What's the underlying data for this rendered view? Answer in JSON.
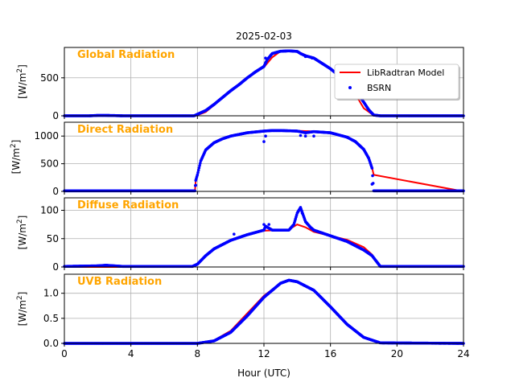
{
  "figure": {
    "title": "2025-02-03",
    "xlabel": "Hour (UTC)",
    "ylabel_unit": "[W/m",
    "ylabel_sup": "2",
    "ylabel_close": "]",
    "xlim": [
      0,
      24
    ],
    "xticks": [
      0,
      4,
      8,
      12,
      16,
      20,
      24
    ],
    "grid": true,
    "label_color": "#ffa500",
    "model_color": "#ff0000",
    "obs_color": "#0000ff"
  },
  "legend": {
    "placement": "upper right of first panel",
    "entries": [
      {
        "label": "LibRadtran Model",
        "kind": "line",
        "color": "#ff0000"
      },
      {
        "label": "BSRN",
        "kind": "dot",
        "color": "#0000ff"
      }
    ]
  },
  "chart_data": [
    {
      "type": "line",
      "panel_label": "Global Radiation",
      "ylim": [
        0,
        900
      ],
      "yticks": [
        0,
        500
      ],
      "series": [
        {
          "name": "LibRadtran Model",
          "x": [
            0,
            7.9,
            8.5,
            9,
            10,
            11,
            12,
            12.5,
            13,
            13.5,
            14,
            14.5,
            15,
            16,
            17,
            18,
            18.5,
            18.6,
            24
          ],
          "y": [
            0,
            0,
            50,
            140,
            330,
            510,
            640,
            770,
            850,
            855,
            848,
            800,
            760,
            620,
            470,
            100,
            20,
            0,
            0
          ]
        },
        {
          "name": "BSRN",
          "x": [
            0,
            1.5,
            2,
            2.5,
            3,
            3.5,
            7.8,
            8,
            8.5,
            9,
            9.5,
            10,
            10.5,
            11,
            11.5,
            12,
            12.2,
            12.5,
            13,
            13.5,
            14,
            14.2,
            14.5,
            15,
            15.5,
            16,
            16.5,
            17,
            17.5,
            18,
            18.3,
            18.6,
            19,
            24
          ],
          "y": [
            0,
            0,
            5,
            5,
            3,
            0,
            0,
            20,
            70,
            150,
            240,
            330,
            410,
            500,
            580,
            650,
            740,
            820,
            850,
            855,
            848,
            820,
            790,
            760,
            690,
            620,
            530,
            460,
            340,
            180,
            80,
            10,
            0,
            0
          ]
        }
      ],
      "outliers_x": [
        12.1,
        12.1,
        14.5,
        14.9
      ],
      "outliers_y": [
        700,
        760,
        780,
        760
      ]
    },
    {
      "type": "line",
      "panel_label": "Direct Radiation",
      "ylim": [
        0,
        1250
      ],
      "yticks": [
        0,
        500,
        1000
      ],
      "series": [
        {
          "name": "LibRadtran Model",
          "x": [
            0,
            7.85,
            7.9,
            8.2,
            8.5,
            9,
            10,
            11,
            12,
            13,
            14,
            15,
            16,
            17,
            17.5,
            18,
            18.3,
            18.5,
            18.6,
            24
          ],
          "y": [
            0,
            0,
            200,
            550,
            750,
            880,
            1000,
            1060,
            1090,
            1100,
            1095,
            1085,
            1060,
            980,
            900,
            760,
            600,
            430,
            300,
            0
          ]
        },
        {
          "name": "BSRN",
          "x": [
            0,
            7.85,
            7.9,
            8,
            8.2,
            8.5,
            9,
            9.5,
            10,
            11,
            12,
            12.5,
            13,
            13.5,
            14,
            14.5,
            15,
            16,
            17,
            17.5,
            18,
            18.3,
            18.5,
            18.6,
            24
          ],
          "y": [
            10,
            10,
            200,
            300,
            550,
            750,
            880,
            950,
            1000,
            1060,
            1090,
            1100,
            1100,
            1095,
            1090,
            1060,
            1080,
            1060,
            980,
            900,
            760,
            600,
            420,
            10,
            10
          ]
        }
      ],
      "outliers_x": [
        7.9,
        12,
        12.1,
        14.2,
        14.5,
        15,
        18.5
      ],
      "outliers_y": [
        110,
        900,
        1000,
        1010,
        1000,
        1000,
        130
      ]
    },
    {
      "type": "line",
      "panel_label": "Diffuse Radiation",
      "ylim": [
        0,
        122
      ],
      "yticks": [
        0,
        50,
        100
      ],
      "series": [
        {
          "name": "LibRadtran Model",
          "x": [
            0,
            7.7,
            8,
            8.5,
            9,
            10,
            11,
            12,
            13,
            13.5,
            14,
            14.5,
            15,
            16,
            17,
            18,
            18.5,
            19,
            24
          ],
          "y": [
            0,
            0,
            5,
            20,
            32,
            47,
            57,
            64,
            65,
            66,
            75,
            70,
            62,
            55,
            48,
            35,
            22,
            0,
            0
          ]
        },
        {
          "name": "BSRN",
          "x": [
            0,
            2,
            2.5,
            3,
            3.5,
            5,
            7.7,
            8,
            8.5,
            9,
            10,
            11,
            12,
            12.1,
            12.5,
            13,
            13.5,
            13.8,
            14,
            14.2,
            14.5,
            14.8,
            15,
            15.5,
            16,
            17,
            18,
            18.5,
            19,
            21,
            23,
            24
          ],
          "y": [
            1,
            2,
            3,
            2,
            1,
            1,
            1,
            5,
            20,
            32,
            47,
            57,
            65,
            72,
            65,
            65,
            65,
            75,
            95,
            105,
            80,
            70,
            65,
            60,
            55,
            45,
            30,
            20,
            1,
            1,
            1,
            1
          ]
        }
      ],
      "outliers_x": [
        10.2,
        12,
        12.3,
        14.1,
        14.3
      ],
      "outliers_y": [
        58,
        75,
        75,
        100,
        95
      ]
    },
    {
      "type": "line",
      "panel_label": "UVB Radiation",
      "ylim": [
        0,
        1.38
      ],
      "yticks": [
        0,
        0.5,
        1.0
      ],
      "ytick_labels": [
        "0.0",
        "0.5",
        "1.0"
      ],
      "series": [
        {
          "name": "LibRadtran Model",
          "x": [
            0,
            8,
            9,
            10,
            11,
            12,
            13,
            13.5,
            14,
            15,
            16,
            17,
            18,
            19,
            24
          ],
          "y": [
            0,
            0,
            0.06,
            0.25,
            0.6,
            0.95,
            1.2,
            1.25,
            1.22,
            1.05,
            0.72,
            0.38,
            0.12,
            0.01,
            0
          ]
        },
        {
          "name": "BSRN",
          "x": [
            0,
            8,
            9,
            10,
            11,
            12,
            13,
            13.5,
            14,
            15,
            16,
            17,
            18,
            19,
            24
          ],
          "y": [
            0,
            0,
            0.05,
            0.22,
            0.55,
            0.92,
            1.2,
            1.26,
            1.23,
            1.06,
            0.73,
            0.38,
            0.12,
            0.01,
            0
          ]
        }
      ],
      "outliers_x": [],
      "outliers_y": []
    }
  ]
}
